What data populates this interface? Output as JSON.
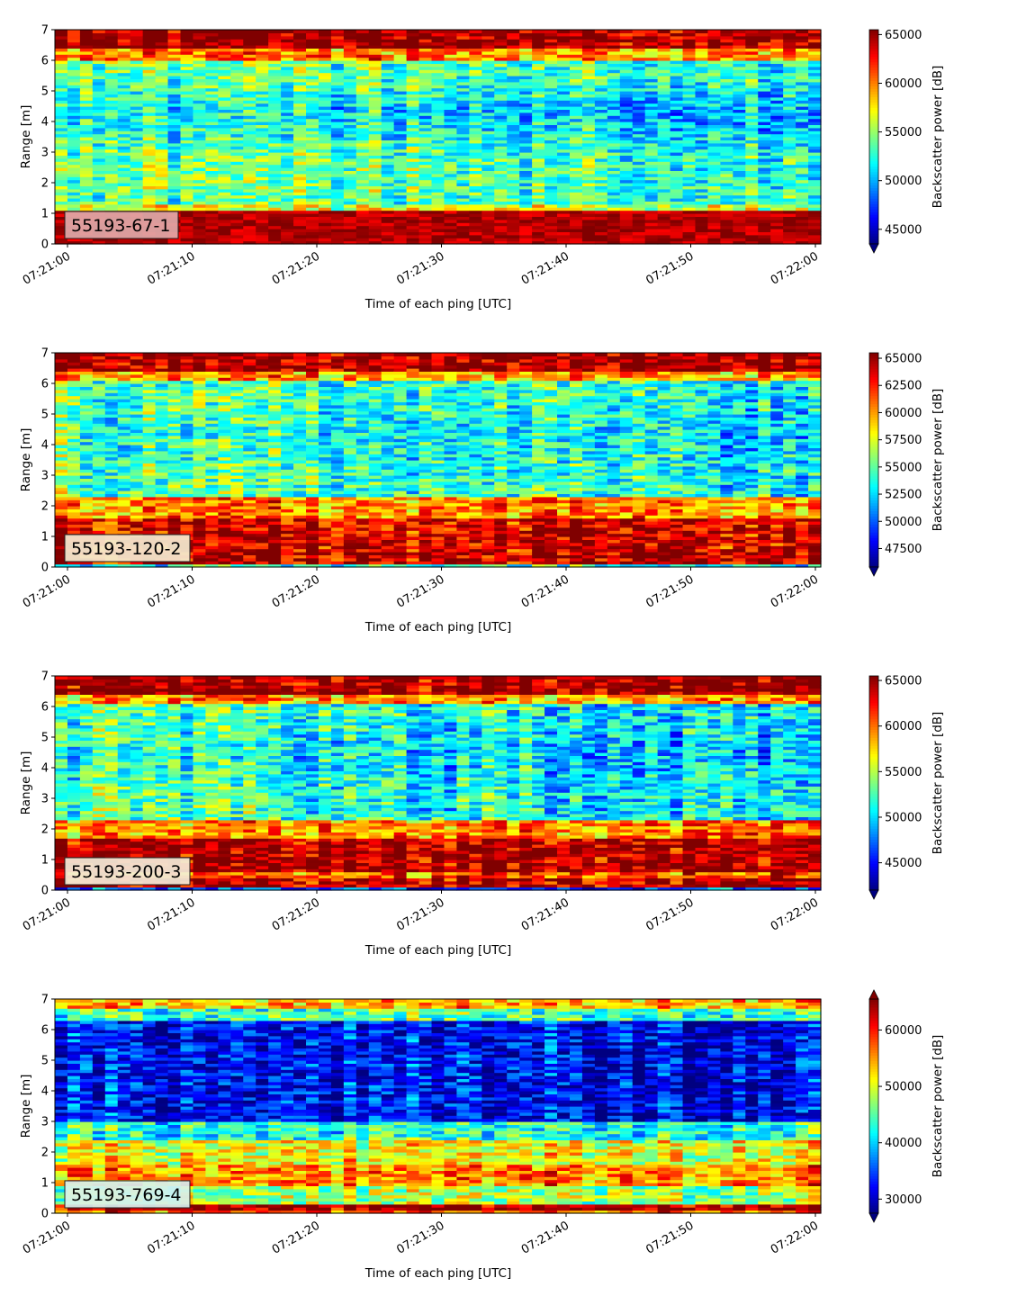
{
  "chart_data": [
    {
      "type": "heatmap",
      "panel_label": "55193-67-1",
      "xlabel": "Time of each ping [UTC]",
      "ylabel": "Range [m]",
      "x_ticks": [
        "07:21:00",
        "07:21:10",
        "07:21:20",
        "07:21:30",
        "07:21:40",
        "07:21:50",
        "07:22:00"
      ],
      "y_ticks": [
        "0",
        "1",
        "2",
        "3",
        "4",
        "5",
        "6",
        "7"
      ],
      "ylim": [
        0,
        7
      ],
      "colorbar": {
        "label": "Backscatter power [dB]",
        "range": [
          43500,
          65500
        ],
        "ticks": [
          "45000",
          "50000",
          "55000",
          "60000",
          "65000"
        ],
        "extend": "min",
        "colormap": "jet"
      }
    },
    {
      "type": "heatmap",
      "panel_label": "55193-120-2",
      "xlabel": "Time of each ping [UTC]",
      "ylabel": "Range [m]",
      "x_ticks": [
        "07:21:00",
        "07:21:10",
        "07:21:20",
        "07:21:30",
        "07:21:40",
        "07:21:50",
        "07:22:00"
      ],
      "y_ticks": [
        "0",
        "1",
        "2",
        "3",
        "4",
        "5",
        "6",
        "7"
      ],
      "ylim": [
        0,
        7
      ],
      "colorbar": {
        "label": "Backscatter power [dB]",
        "range": [
          45800,
          65500
        ],
        "ticks": [
          "47500",
          "50000",
          "52500",
          "55000",
          "57500",
          "60000",
          "62500",
          "65000"
        ],
        "extend": "min",
        "colormap": "jet"
      }
    },
    {
      "type": "heatmap",
      "panel_label": "55193-200-3",
      "xlabel": "Time of each ping [UTC]",
      "ylabel": "Range [m]",
      "x_ticks": [
        "07:21:00",
        "07:21:10",
        "07:21:20",
        "07:21:30",
        "07:21:40",
        "07:21:50",
        "07:22:00"
      ],
      "y_ticks": [
        "0",
        "1",
        "2",
        "3",
        "4",
        "5",
        "6",
        "7"
      ],
      "ylim": [
        0,
        7
      ],
      "colorbar": {
        "label": "Backscatter power [dB]",
        "range": [
          42000,
          65500
        ],
        "ticks": [
          "45000",
          "50000",
          "55000",
          "60000",
          "65000"
        ],
        "extend": "min",
        "colormap": "jet"
      }
    },
    {
      "type": "heatmap",
      "panel_label": "55193-769-4",
      "xlabel": "Time of each ping [UTC]",
      "ylabel": "Range [m]",
      "x_ticks": [
        "07:21:00",
        "07:21:10",
        "07:21:20",
        "07:21:30",
        "07:21:40",
        "07:21:50",
        "07:22:00"
      ],
      "y_ticks": [
        "0",
        "1",
        "2",
        "3",
        "4",
        "5",
        "6",
        "7"
      ],
      "ylim": [
        0,
        7
      ],
      "colorbar": {
        "label": "Backscatter power [dB]",
        "range": [
          27500,
          65500
        ],
        "ticks": [
          "30000",
          "40000",
          "50000",
          "60000"
        ],
        "extend": "both",
        "colormap": "jet"
      }
    }
  ]
}
